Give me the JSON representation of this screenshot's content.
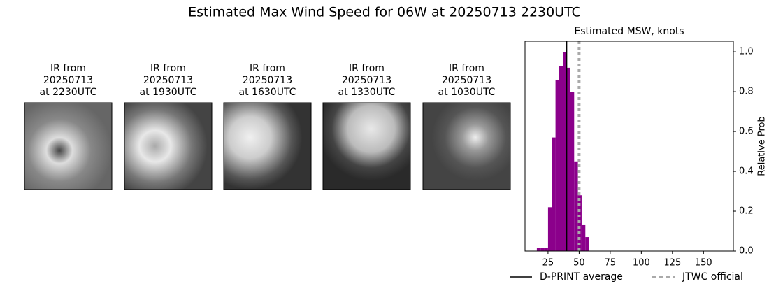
{
  "title": "Estimated Max Wind Speed for 06W at 20250713 2230UTC",
  "panels": [
    {
      "lines": [
        "IR from",
        "20250713",
        "at 2230UTC"
      ]
    },
    {
      "lines": [
        "IR from",
        "20250713",
        "at 1930UTC"
      ]
    },
    {
      "lines": [
        "IR from",
        "20250713",
        "at 1630UTC"
      ]
    },
    {
      "lines": [
        "IR from",
        "20250713",
        "at 1330UTC"
      ]
    },
    {
      "lines": [
        "IR from",
        "20250713",
        "at 1030UTC"
      ]
    }
  ],
  "chart_data": {
    "type": "histogram",
    "title": "Estimated MSW, knots",
    "y_label": "Relative Prob",
    "bins": [
      16,
      19,
      22,
      25,
      28,
      31,
      34,
      37,
      40,
      43,
      46,
      49,
      52,
      55,
      58
    ],
    "values": [
      0.015,
      0.015,
      0.015,
      0.22,
      0.57,
      0.86,
      0.93,
      1.0,
      0.92,
      0.8,
      0.45,
      0.28,
      0.13,
      0.07
    ],
    "color": "#8b008b",
    "xlim": [
      6.5,
      174
    ],
    "xticks": [
      25,
      50,
      75,
      100,
      125,
      150
    ],
    "ylim": [
      0,
      1.053
    ],
    "yticks": [
      {
        "value": 0,
        "label": "0.0"
      },
      0.2,
      0.4,
      0.6,
      0.8,
      {
        "value": 1,
        "label": "1.0"
      }
    ],
    "lines": [
      {
        "name": "D-PRINT average",
        "x": 40,
        "color": "#000000",
        "style": "solid"
      },
      {
        "name": "JTWC official",
        "x": 50,
        "color": "#aaaaaa",
        "style": "dotted"
      }
    ]
  }
}
